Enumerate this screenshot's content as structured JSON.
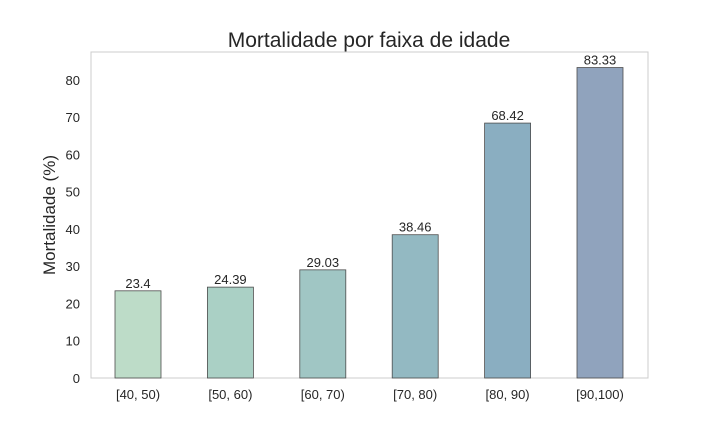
{
  "chart_data": {
    "type": "bar",
    "title": "Mortalidade por faixa de idade",
    "xlabel": "",
    "ylabel": "Mortalidade (%)",
    "categories": [
      "[40, 50)",
      "[50, 60)",
      "[60, 70)",
      "[70, 80)",
      "[80, 90)",
      "[90,100)"
    ],
    "values": [
      23.4,
      24.39,
      29.03,
      38.46,
      68.42,
      83.33
    ],
    "value_labels": [
      "23.4",
      "24.39",
      "29.03",
      "38.46",
      "68.42",
      "83.33"
    ],
    "ylim": [
      0,
      87.5
    ],
    "yticks": [
      0,
      10,
      20,
      30,
      40,
      50,
      60,
      70,
      80
    ],
    "grid": false,
    "legend": "none",
    "bar_colors": [
      "#bddcc8",
      "#aad0c5",
      "#a0c6c4",
      "#93b9c2",
      "#8aaec1",
      "#90a3bd"
    ],
    "bar_edge_color": "#4d4d4d",
    "frame_color": "#cccccc"
  }
}
